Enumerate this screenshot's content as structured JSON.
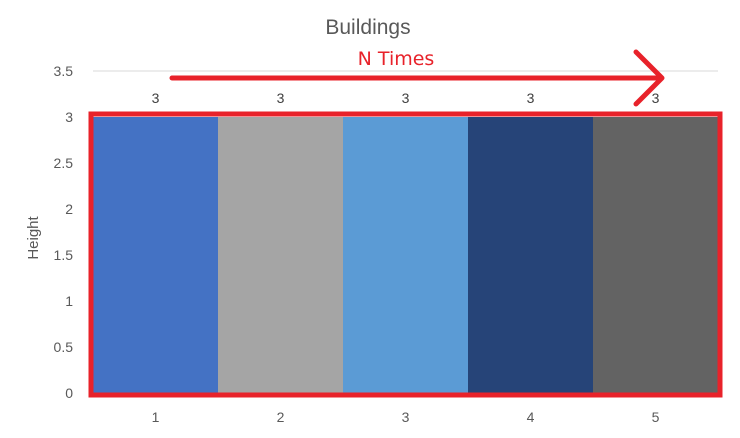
{
  "chart_data": {
    "type": "bar",
    "title": "Buildings",
    "xlabel": "",
    "ylabel": "Height",
    "categories": [
      "1",
      "2",
      "3",
      "4",
      "5"
    ],
    "values": [
      3,
      3,
      3,
      3,
      3
    ],
    "data_labels": [
      "3",
      "3",
      "3",
      "3",
      "3"
    ],
    "ylim": [
      0,
      3.5
    ],
    "yticks": [
      "0",
      "0.5",
      "1",
      "1.5",
      "2",
      "2.5",
      "3",
      "3.5"
    ],
    "bar_colors": [
      "#4472C4",
      "#A5A5A5",
      "#5B9BD5",
      "#264478",
      "#636363"
    ],
    "grid": false,
    "legend": "none",
    "annotation": {
      "text": "N Times",
      "color": "#E8222A",
      "style": "arrow pointing right above the bars, red rectangle around all bars"
    }
  }
}
